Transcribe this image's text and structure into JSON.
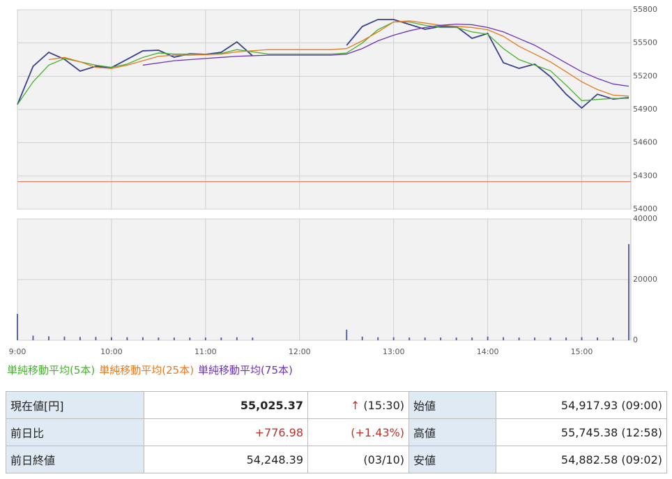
{
  "chart_data": [
    {
      "type": "line",
      "x": [
        "9:00",
        "9:10",
        "9:20",
        "9:30",
        "9:40",
        "9:50",
        "10:00",
        "10:10",
        "10:20",
        "10:30",
        "10:40",
        "10:50",
        "11:00",
        "11:10",
        "11:20",
        "11:30",
        "11:40",
        "11:50",
        "12:00",
        "12:10",
        "12:20",
        "12:30",
        "12:40",
        "12:50",
        "13:00",
        "13:10",
        "13:20",
        "13:30",
        "13:40",
        "13:50",
        "14:00",
        "14:10",
        "14:20",
        "14:30",
        "14:40",
        "14:50",
        "15:00",
        "15:10",
        "15:20",
        "15:30"
      ],
      "xlim": [
        "9:00",
        "15:30"
      ],
      "ylim": [
        54000,
        55800
      ],
      "yticks": [
        54000,
        54300,
        54600,
        54900,
        55200,
        55500,
        55800
      ],
      "grid": true,
      "hline": {
        "value": 54248.39,
        "color": "#e8735a"
      },
      "series": [
        {
          "color": "#3a3f8c",
          "values": [
            54944,
            55290,
            55416,
            55353,
            55246,
            55290,
            55278,
            55353,
            55429,
            55435,
            55372,
            55403,
            55397,
            55416,
            55510,
            55384,
            null,
            null,
            null,
            null,
            null,
            55479,
            55649,
            55712,
            55712,
            55668,
            55624,
            55649,
            55649,
            55542,
            55586,
            55322,
            55271,
            55309,
            55196,
            55038,
            54913,
            55038,
            54994,
            55007
          ]
        },
        {
          "name": "単純移動平均(5本)",
          "color": "#44b12c",
          "values": [
            54944,
            55150,
            55300,
            55360,
            55330,
            55300,
            55280,
            55310,
            55370,
            55410,
            55400,
            55400,
            55395,
            55405,
            55440,
            55420,
            55400,
            55400,
            55400,
            55400,
            55400,
            55410,
            55500,
            55620,
            55690,
            55690,
            55660,
            55640,
            55640,
            55600,
            55580,
            55450,
            55350,
            55300,
            55250,
            55120,
            54980,
            54990,
            55000,
            55000
          ]
        },
        {
          "name": "単純移動平均(25本)",
          "color": "#e8781e",
          "values": [
            null,
            null,
            55350,
            55370,
            55330,
            55280,
            55270,
            55300,
            55340,
            55380,
            55390,
            55390,
            55395,
            55400,
            55420,
            55430,
            55440,
            55440,
            55440,
            55440,
            55440,
            55450,
            55520,
            55600,
            55690,
            55700,
            55680,
            55660,
            55650,
            55640,
            55620,
            55560,
            55470,
            55400,
            55330,
            55240,
            55150,
            55080,
            55030,
            55020
          ]
        },
        {
          "name": "単純移動平均(75本)",
          "color": "#6a32b8",
          "values": [
            null,
            null,
            null,
            null,
            null,
            null,
            null,
            null,
            55300,
            55320,
            55340,
            55350,
            55360,
            55370,
            55380,
            55385,
            55390,
            55390,
            55390,
            55390,
            55390,
            55400,
            55450,
            55520,
            55570,
            55610,
            55640,
            55660,
            55670,
            55665,
            55640,
            55600,
            55540,
            55480,
            55400,
            55320,
            55240,
            55180,
            55130,
            55110
          ]
        }
      ]
    },
    {
      "type": "bar",
      "color": "#5a63a8",
      "ylim": [
        0,
        40000
      ],
      "yticks": [
        0,
        20000,
        40000
      ],
      "xticks": [
        "9:00",
        "10:00",
        "11:00",
        "12:00",
        "13:00",
        "14:00",
        "15:00"
      ],
      "values": [
        8700,
        1500,
        1300,
        1200,
        1100,
        1100,
        1000,
        1000,
        1000,
        900,
        900,
        900,
        900,
        900,
        1000,
        900,
        null,
        null,
        null,
        null,
        null,
        3500,
        1200,
        1000,
        1000,
        900,
        900,
        900,
        900,
        900,
        1200,
        1000,
        900,
        900,
        900,
        900,
        1000,
        900,
        900,
        31700
      ]
    }
  ],
  "table": {
    "arrow": "↑",
    "rows": [
      [
        "現在値[円]",
        "55,025.37",
        "(15:30)",
        "始値",
        "54,917.93 (09:00)"
      ],
      [
        "前日比",
        "+776.98",
        "(+1.43%)",
        "高値",
        "55,745.38 (12:58)"
      ],
      [
        "前日終値",
        "54,248.39",
        "(03/10)",
        "安値",
        "54,882.58 (09:02)"
      ]
    ]
  }
}
